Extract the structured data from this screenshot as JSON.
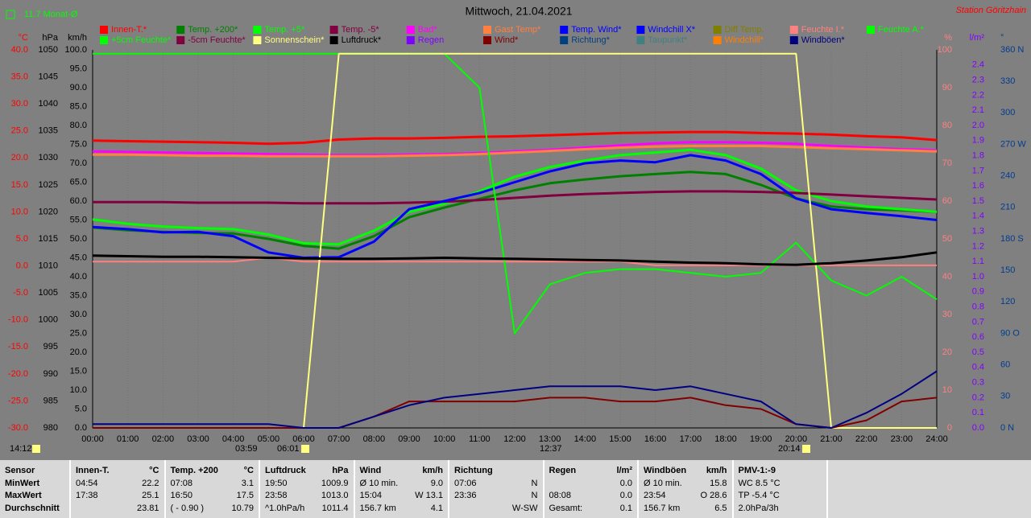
{
  "chart_data": {
    "type": "line",
    "title": "Mittwoch, 21.04.2021",
    "station": "Station Göritzhain",
    "month_avg": "11.7 Monat-Ø",
    "x": [
      0,
      1,
      2,
      3,
      4,
      5,
      6,
      7,
      8,
      9,
      10,
      11,
      12,
      13,
      14,
      15,
      16,
      17,
      18,
      19,
      20,
      21,
      22,
      23,
      24
    ],
    "xlim": [
      0,
      24
    ],
    "xticks": [
      {
        "value": 0,
        "label": "00:00"
      },
      {
        "value": 1,
        "label": "01:00"
      },
      {
        "value": 2,
        "label": "02:00"
      },
      {
        "value": 3,
        "label": "03:00"
      },
      {
        "value": 4,
        "label": "04:00"
      },
      {
        "value": 5,
        "label": "05:00"
      },
      {
        "value": 6,
        "label": "06:00"
      },
      {
        "value": 7,
        "label": "07:00"
      },
      {
        "value": 8,
        "label": "08:00"
      },
      {
        "value": 9,
        "label": "09:00"
      },
      {
        "value": 10,
        "label": "10:00"
      },
      {
        "value": 11,
        "label": "11:00"
      },
      {
        "value": 12,
        "label": "12:00"
      },
      {
        "value": 13,
        "label": "13:00"
      },
      {
        "value": 14,
        "label": "14:00"
      },
      {
        "value": 15,
        "label": "15:00"
      },
      {
        "value": 16,
        "label": "16:00"
      },
      {
        "value": 17,
        "label": "17:00"
      },
      {
        "value": 18,
        "label": "18:00"
      },
      {
        "value": 19,
        "label": "19:00"
      },
      {
        "value": 20,
        "label": "20:00"
      },
      {
        "value": 21,
        "label": "21:00"
      },
      {
        "value": 22,
        "label": "22:00"
      },
      {
        "value": 23,
        "label": "23:00"
      },
      {
        "value": 24,
        "label": "24:00"
      }
    ],
    "grid": true,
    "annotations": [
      "14:12",
      "03:59",
      "06:01",
      "12:37",
      "20:14"
    ],
    "axes": [
      {
        "id": "y",
        "label": "°C",
        "color": "#ff0000",
        "lim": [
          -30,
          40
        ],
        "ticks": [
          {
            "value": -30,
            "label": "-30.0"
          },
          {
            "value": -25,
            "label": "-25.0"
          },
          {
            "value": -20,
            "label": "-20.0"
          },
          {
            "value": -15,
            "label": "-15.0"
          },
          {
            "value": -10,
            "label": "-10.0"
          },
          {
            "value": -5,
            "label": "-5.0"
          },
          {
            "value": 0,
            "label": "0.0"
          },
          {
            "value": 5,
            "label": "5.0"
          },
          {
            "value": 10,
            "label": "10.0"
          },
          {
            "value": 15,
            "label": "15.0"
          },
          {
            "value": 20,
            "label": "20.0"
          },
          {
            "value": 25,
            "label": "25.0"
          },
          {
            "value": 30,
            "label": "30.0"
          },
          {
            "value": 35,
            "label": "35.0"
          },
          {
            "value": 40,
            "label": "40.0"
          }
        ]
      },
      {
        "id": "y3",
        "label": "hPa",
        "color": "#000000",
        "lim": [
          980,
          1050
        ],
        "ticks": [
          980,
          985,
          990,
          995,
          1000,
          1005,
          1010,
          1015,
          1020,
          1025,
          1030,
          1035,
          1040,
          1045,
          1050
        ]
      },
      {
        "id": "y4",
        "label": "km/h",
        "color": "#000000",
        "lim": [
          0,
          100
        ],
        "ticks": [
          {
            "value": 0,
            "label": "0.0"
          },
          {
            "value": 5,
            "label": "5.0"
          },
          {
            "value": 10,
            "label": "10.0"
          },
          {
            "value": 15,
            "label": "15.0"
          },
          {
            "value": 20,
            "label": "20.0"
          },
          {
            "value": 25,
            "label": "25.0"
          },
          {
            "value": 30,
            "label": "30.0"
          },
          {
            "value": 35,
            "label": "35.0"
          },
          {
            "value": 40,
            "label": "40.0"
          },
          {
            "value": 45,
            "label": "45.0"
          },
          {
            "value": 50,
            "label": "50.0"
          },
          {
            "value": 55,
            "label": "55.0"
          },
          {
            "value": 60,
            "label": "60.0"
          },
          {
            "value": 65,
            "label": "65.0"
          },
          {
            "value": 70,
            "label": "70.0"
          },
          {
            "value": 75,
            "label": "75.0"
          },
          {
            "value": 80,
            "label": "80.0"
          },
          {
            "value": 85,
            "label": "85.0"
          },
          {
            "value": 90,
            "label": "90.0"
          },
          {
            "value": 95,
            "label": "95.0"
          },
          {
            "value": 100,
            "label": "100.0"
          }
        ]
      },
      {
        "id": "y2",
        "label": "%",
        "color": "#ff8080",
        "lim": [
          0,
          100
        ],
        "ticks": [
          0,
          10,
          20,
          30,
          40,
          50,
          60,
          70,
          80,
          90,
          100
        ]
      },
      {
        "id": "y5",
        "label": "l/m²",
        "color": "#8000ff",
        "lim": [
          0,
          2.5
        ],
        "ticks": [
          {
            "value": 0,
            "label": "0.0"
          },
          0.1,
          0.2,
          0.3,
          0.4,
          0.5,
          0.6,
          0.7,
          0.8,
          0.9,
          {
            "value": 1,
            "label": "1.0"
          },
          1.1,
          1.2,
          1.3,
          1.4,
          1.5,
          1.6,
          1.7,
          1.8,
          1.9,
          {
            "value": 2,
            "label": "2.0"
          },
          2.1,
          2.2,
          2.3,
          2.4
        ]
      },
      {
        "id": "y6",
        "label": "°",
        "color": "#003c90",
        "lim": [
          0,
          360
        ],
        "ticks": [
          {
            "value": 0,
            "label": "0 N"
          },
          30,
          60,
          {
            "value": 90,
            "label": "90 O"
          },
          120,
          150,
          {
            "value": 180,
            "label": "180 S"
          },
          210,
          240,
          {
            "value": 270,
            "label": "270 W"
          },
          300,
          330,
          {
            "value": 360,
            "label": "360 N"
          }
        ]
      }
    ],
    "series": [
      {
        "name": "Innen-T.*",
        "color": "#ff0000",
        "axis": "y",
        "values": [
          23.2,
          23.1,
          23.0,
          22.9,
          22.8,
          22.6,
          22.8,
          23.4,
          23.6,
          23.6,
          23.7,
          23.9,
          24.0,
          24.2,
          24.4,
          24.6,
          24.7,
          24.8,
          24.8,
          24.6,
          24.5,
          24.3,
          24.0,
          23.8,
          23.3
        ]
      },
      {
        "name": "Temp. +200*",
        "color": "#008000",
        "axis": "y",
        "values": [
          7.1,
          6.6,
          6.3,
          6.1,
          6.0,
          5.0,
          3.7,
          3.2,
          5.5,
          9.0,
          10.8,
          12.4,
          14.0,
          15.3,
          16.0,
          16.6,
          17.0,
          17.4,
          17.0,
          15.0,
          12.5,
          11.0,
          10.5,
          10.3,
          10.0
        ]
      },
      {
        "name": "Temp. +5*",
        "color": "#00ff00",
        "axis": "y",
        "values": [
          8.6,
          7.8,
          7.3,
          7.0,
          6.8,
          5.8,
          4.2,
          4.0,
          6.5,
          10.0,
          11.5,
          13.8,
          16.5,
          18.3,
          19.5,
          20.5,
          21.0,
          21.5,
          20.5,
          18.0,
          14.0,
          12.0,
          11.0,
          10.5,
          10.0
        ]
      },
      {
        "name": "Temp. -5*",
        "color": "#800040",
        "axis": "y",
        "values": [
          11.8,
          11.8,
          11.8,
          11.7,
          11.7,
          11.7,
          11.6,
          11.6,
          11.6,
          11.7,
          11.9,
          12.2,
          12.6,
          13.0,
          13.3,
          13.5,
          13.7,
          13.8,
          13.8,
          13.7,
          13.5,
          13.2,
          12.9,
          12.6,
          12.3
        ]
      },
      {
        "name": "Bad*",
        "color": "#ff00ff",
        "axis": "y",
        "values": [
          21.2,
          21.1,
          21.0,
          20.9,
          20.8,
          20.7,
          20.6,
          20.5,
          20.5,
          20.6,
          20.7,
          20.9,
          21.2,
          21.5,
          21.9,
          22.3,
          22.7,
          22.9,
          22.9,
          22.8,
          22.6,
          22.2,
          21.9,
          21.6,
          21.4
        ]
      },
      {
        "name": "Gast Temp*",
        "color": "#ff8040",
        "axis": "y",
        "values": [
          20.6,
          20.6,
          20.5,
          20.4,
          20.4,
          20.3,
          20.3,
          20.3,
          20.3,
          20.4,
          20.5,
          20.7,
          21.0,
          21.3,
          21.6,
          21.9,
          22.1,
          22.2,
          22.2,
          22.2,
          22.0,
          21.8,
          21.6,
          21.4,
          21.2
        ]
      },
      {
        "name": "Temp. Wind*",
        "color": "#0000ff",
        "axis": "y",
        "values": [
          7.2,
          6.8,
          6.2,
          6.3,
          5.5,
          2.5,
          1.5,
          1.6,
          4.5,
          10.5,
          12.0,
          13.5,
          15.5,
          17.5,
          19.0,
          19.5,
          19.2,
          20.5,
          19.5,
          17.0,
          12.5,
          10.5,
          9.8,
          9.2,
          8.5
        ]
      },
      {
        "name": "Windchill X*",
        "color": "#0000ff"
      },
      {
        "name": "Diff Temp.",
        "color": "#808000"
      },
      {
        "name": "Feuchte I.*",
        "color": "#ff8080",
        "axis": "y2",
        "values": [
          44,
          44,
          44,
          44,
          44,
          45,
          44,
          44,
          44,
          44,
          44,
          44,
          44,
          44,
          44,
          44,
          43,
          43,
          43,
          43,
          43,
          43,
          43,
          43,
          43
        ]
      },
      {
        "name": "Feuchte A.*",
        "color": "#00ff00",
        "axis": "y2",
        "values": [
          99,
          99,
          99,
          99,
          99,
          99,
          99,
          99,
          99,
          99,
          99,
          90,
          25,
          38,
          41,
          42,
          42,
          41,
          40,
          41,
          49,
          39,
          35,
          40,
          34
        ]
      },
      {
        "name": "+5cm Feuchte*",
        "color": "#00ff00"
      },
      {
        "name": "-5cm Feuchte*",
        "color": "#800040"
      },
      {
        "name": "Sonnenschein*",
        "color": "#ffff80",
        "axis": "y2",
        "values": [
          0,
          0,
          0,
          0,
          0,
          0,
          0,
          99,
          99,
          99,
          99,
          99,
          99,
          99,
          99,
          99,
          99,
          99,
          99,
          99,
          99,
          0,
          0,
          0,
          0
        ]
      },
      {
        "name": "Luftdruck*",
        "color": "#000000",
        "axis": "y3",
        "values": [
          1011.9,
          1011.8,
          1011.7,
          1011.7,
          1011.6,
          1011.5,
          1011.4,
          1011.3,
          1011.3,
          1011.4,
          1011.5,
          1011.4,
          1011.3,
          1011.2,
          1011.1,
          1011.0,
          1010.8,
          1010.6,
          1010.5,
          1010.3,
          1010.2,
          1010.5,
          1011.0,
          1011.6,
          1012.5
        ]
      },
      {
        "name": "Regen",
        "color": "#8000ff"
      },
      {
        "name": "Wind*",
        "color": "#800000",
        "axis": "y4",
        "values": [
          0,
          0,
          0,
          0,
          0,
          0,
          0,
          0,
          3,
          7,
          7,
          7,
          7,
          8,
          8,
          7,
          7,
          8,
          6,
          5,
          1,
          0,
          2,
          7,
          8
        ]
      },
      {
        "name": "Richtung*",
        "color": "#004080"
      },
      {
        "name": "Taupunkt*",
        "color": "#408080"
      },
      {
        "name": "Windchill*",
        "color": "#ff8000"
      },
      {
        "name": "Windböen*",
        "color": "#000080",
        "axis": "y4",
        "values": [
          1,
          1,
          1,
          1,
          1,
          1,
          0,
          0,
          3,
          6,
          8,
          9,
          10,
          11,
          11,
          11,
          10,
          11,
          9,
          7,
          1,
          0,
          4,
          9,
          15
        ]
      }
    ]
  },
  "stats": {
    "row_labels": [
      "Sensor",
      "MinWert",
      "MaxWert",
      "Durchschnitt"
    ],
    "groups": [
      {
        "name": "Innen-T.",
        "unit": "°C",
        "rows": [
          [
            "04:54",
            "22.2"
          ],
          [
            "17:38",
            "25.1"
          ],
          [
            "23.81"
          ]
        ]
      },
      {
        "name": "Temp. +200",
        "unit": "°C",
        "rows": [
          [
            "07:08",
            "3.1"
          ],
          [
            "16:50",
            "17.5"
          ],
          [
            "( - 0.90 )",
            "10.79"
          ]
        ]
      },
      {
        "name": "Luftdruck",
        "unit": "hPa",
        "rows": [
          [
            "19:50",
            "1009.9"
          ],
          [
            "23:58",
            "1013.0"
          ],
          [
            "^1.0hPa/h",
            "1011.4"
          ]
        ]
      },
      {
        "name": "Wind",
        "unit": "km/h",
        "rows": [
          [
            "Ø 10 min.",
            "9.0"
          ],
          [
            "15:04",
            "W 13.1"
          ],
          [
            "156.7 km",
            "4.1"
          ]
        ]
      },
      {
        "name": "Richtung",
        "rows": [
          [
            "07:06",
            "N"
          ],
          [
            "23:36",
            "N"
          ],
          [
            "W-SW"
          ]
        ]
      },
      {
        "name": "Regen",
        "unit": "l/m²",
        "rows": [
          [
            "0.0"
          ],
          [
            "08:08",
            "0.0"
          ],
          [
            "Gesamt:",
            "0.1"
          ]
        ]
      },
      {
        "name": "Windböen",
        "unit": "km/h",
        "rows": [
          [
            "Ø 10 min.",
            "15.8"
          ],
          [
            "23:54",
            "O 28.6"
          ],
          [
            "156.7 km",
            "6.5"
          ]
        ]
      },
      {
        "name": "PMV-1:-9",
        "rows": [
          [
            "WC 8.5 °C"
          ],
          [
            "TP -5.4 °C"
          ],
          [
            "2.0hPa/3h"
          ]
        ]
      }
    ]
  }
}
